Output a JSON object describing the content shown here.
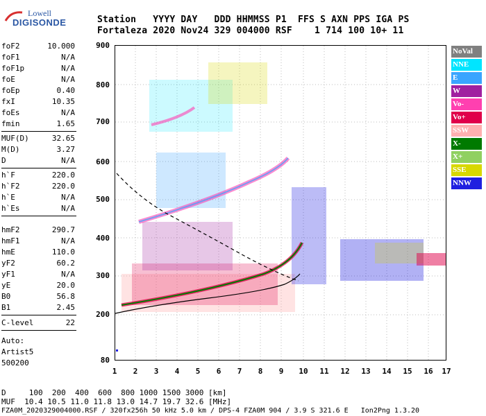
{
  "logo": {
    "line1": "Lowell",
    "line2": "DIGISONDE"
  },
  "header": {
    "line1": "Station   YYYY DAY   DDD HHMMSS P1  FFS S AXN PPS IGA PS",
    "line2": "Fortaleza 2020 Nov24 329 004000 RSF    1 714 100 10+ 11"
  },
  "params_group1": [
    {
      "key": "foF2",
      "value": "10.000"
    },
    {
      "key": "foF1",
      "value": "N/A"
    },
    {
      "key": "foF1p",
      "value": "N/A"
    },
    {
      "key": "foE",
      "value": "N/A"
    },
    {
      "key": "foEp",
      "value": "0.40"
    },
    {
      "key": "fxI",
      "value": "10.35"
    },
    {
      "key": "foEs",
      "value": "N/A"
    },
    {
      "key": "fmin",
      "value": "1.65"
    }
  ],
  "params_group2": [
    {
      "key": "MUF(D)",
      "value": "32.65"
    },
    {
      "key": "M(D)",
      "value": "3.27"
    },
    {
      "key": "D",
      "value": "N/A"
    }
  ],
  "params_group3": [
    {
      "key": "h`F",
      "value": "220.0"
    },
    {
      "key": "h`F2",
      "value": "220.0"
    },
    {
      "key": "h`E",
      "value": "N/A"
    },
    {
      "key": "h`Es",
      "value": "N/A"
    }
  ],
  "params_group4": [
    {
      "key": "hmF2",
      "value": "290.7"
    },
    {
      "key": "hmF1",
      "value": "N/A"
    },
    {
      "key": "hmE",
      "value": "110.0"
    },
    {
      "key": "yF2",
      "value": "60.2"
    },
    {
      "key": "yF1",
      "value": "N/A"
    },
    {
      "key": "yE",
      "value": "20.0"
    },
    {
      "key": "B0",
      "value": "56.8"
    },
    {
      "key": "B1",
      "value": "2.45"
    }
  ],
  "clevel": {
    "key": "C-level",
    "value": "22"
  },
  "auto": {
    "line1": "Auto:",
    "line2": "Artist5",
    "line3": "500200"
  },
  "legend": [
    {
      "label": "NoVal",
      "color": "#808080"
    },
    {
      "label": "NNE",
      "color": "#00e5ff"
    },
    {
      "label": "E",
      "color": "#3aa5ff"
    },
    {
      "label": "W",
      "color": "#a020a0"
    },
    {
      "label": "Vo-",
      "color": "#ff40b0"
    },
    {
      "label": "Vo+",
      "color": "#e0004a"
    },
    {
      "label": "SSW",
      "color": "#ffb0b0"
    },
    {
      "label": "X-",
      "color": "#007a00"
    },
    {
      "label": "X+",
      "color": "#90d060"
    },
    {
      "label": "SSE",
      "color": "#d8d800"
    },
    {
      "label": "NNW",
      "color": "#2020e0"
    }
  ],
  "y_ticks": [
    "900",
    "800",
    "700",
    "600",
    "500",
    "400",
    "300",
    "200",
    "80"
  ],
  "x_ticks": [
    "1",
    "2",
    "3",
    "4",
    "5",
    "6",
    "7",
    "8",
    "9",
    "10",
    "11",
    "12",
    "13",
    "14",
    "15",
    "16",
    "17"
  ],
  "footer": {
    "line1": "D     100  200  400  600  800 1000 1500 3000 [km]",
    "line2": "MUF  10.4 10.5 11.0 11.8 13.0 14.7 19.7 32.6 [MHz]",
    "line3": "FZA0M_2020329004000.RSF / 320fx256h 50 kHz 5.0 km / DPS-4 FZA0M 904 / 3.9 S 321.6 E   Ion2Png 1.3.20"
  }
}
